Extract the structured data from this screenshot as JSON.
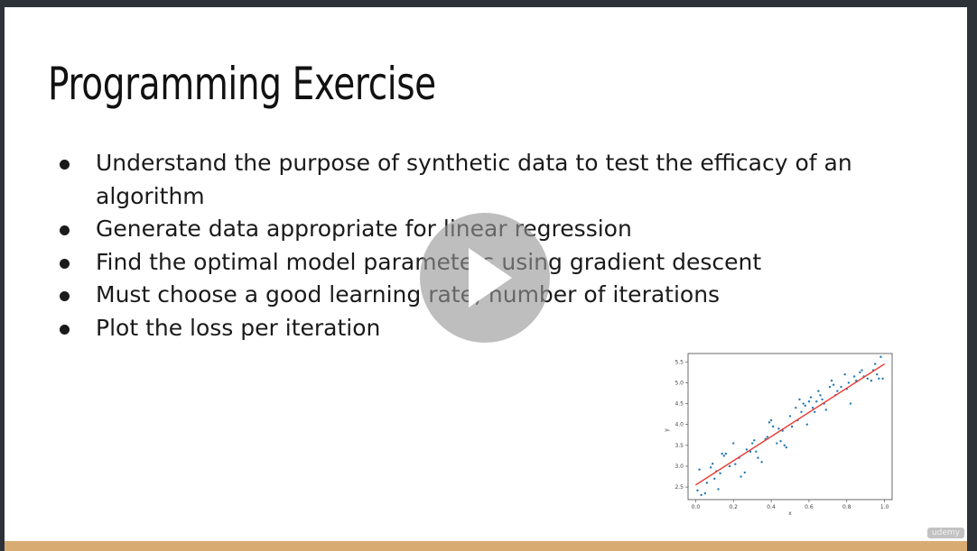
{
  "slide": {
    "title": "Programming Exercise",
    "bullets": [
      "Understand the purpose of synthetic data to test the efficacy of an algorithm",
      "Generate data appropriate for linear regression",
      "Find the optimal model parameters using gradient descent",
      "Must choose a good learning rate, number of iterations",
      "Plot the loss per iteration"
    ],
    "watermark": "udemy"
  },
  "player": {
    "play_icon": "play-icon"
  },
  "colors": {
    "bottom_bar": "#d8ab73",
    "points": "#1f77b4",
    "line": "#e8352b"
  },
  "chart_data": {
    "type": "scatter",
    "xlabel": "x",
    "ylabel": "y",
    "xlim": [
      -0.04,
      1.04
    ],
    "ylim": [
      2.2,
      5.7
    ],
    "xticks": [
      "0.0",
      "0.2",
      "0.4",
      "0.6",
      "0.8",
      "1.0"
    ],
    "yticks": [
      "2.5",
      "3.0",
      "3.5",
      "4.0",
      "4.5",
      "5.0",
      "5.5"
    ],
    "grid": false,
    "fit_line": {
      "x": [
        0.0,
        1.0
      ],
      "y": [
        2.55,
        5.45
      ]
    },
    "points": [
      [
        0.01,
        2.42
      ],
      [
        0.02,
        2.92
      ],
      [
        0.03,
        2.31
      ],
      [
        0.05,
        2.35
      ],
      [
        0.06,
        2.6
      ],
      [
        0.08,
        2.97
      ],
      [
        0.09,
        3.06
      ],
      [
        0.1,
        2.7
      ],
      [
        0.11,
        2.88
      ],
      [
        0.12,
        2.45
      ],
      [
        0.13,
        2.83
      ],
      [
        0.14,
        3.3
      ],
      [
        0.15,
        3.25
      ],
      [
        0.16,
        3.3
      ],
      [
        0.18,
        3.0
      ],
      [
        0.2,
        3.55
      ],
      [
        0.21,
        3.05
      ],
      [
        0.23,
        3.2
      ],
      [
        0.24,
        2.75
      ],
      [
        0.26,
        2.85
      ],
      [
        0.27,
        3.4
      ],
      [
        0.29,
        3.35
      ],
      [
        0.3,
        3.55
      ],
      [
        0.31,
        3.62
      ],
      [
        0.32,
        3.35
      ],
      [
        0.33,
        3.2
      ],
      [
        0.35,
        3.1
      ],
      [
        0.37,
        3.65
      ],
      [
        0.38,
        3.7
      ],
      [
        0.39,
        4.05
      ],
      [
        0.4,
        4.1
      ],
      [
        0.41,
        3.95
      ],
      [
        0.43,
        3.55
      ],
      [
        0.44,
        3.9
      ],
      [
        0.45,
        3.6
      ],
      [
        0.46,
        3.85
      ],
      [
        0.47,
        3.5
      ],
      [
        0.48,
        3.45
      ],
      [
        0.5,
        4.2
      ],
      [
        0.51,
        3.95
      ],
      [
        0.53,
        4.4
      ],
      [
        0.54,
        4.1
      ],
      [
        0.55,
        4.6
      ],
      [
        0.56,
        4.3
      ],
      [
        0.57,
        4.5
      ],
      [
        0.58,
        4.45
      ],
      [
        0.59,
        4.0
      ],
      [
        0.6,
        4.55
      ],
      [
        0.61,
        4.65
      ],
      [
        0.62,
        4.4
      ],
      [
        0.63,
        4.3
      ],
      [
        0.64,
        4.55
      ],
      [
        0.65,
        4.8
      ],
      [
        0.66,
        4.7
      ],
      [
        0.67,
        4.6
      ],
      [
        0.68,
        4.5
      ],
      [
        0.69,
        4.35
      ],
      [
        0.71,
        4.9
      ],
      [
        0.72,
        5.05
      ],
      [
        0.73,
        4.95
      ],
      [
        0.74,
        4.7
      ],
      [
        0.75,
        4.8
      ],
      [
        0.77,
        4.9
      ],
      [
        0.79,
        5.2
      ],
      [
        0.8,
        4.85
      ],
      [
        0.81,
        5.0
      ],
      [
        0.82,
        4.5
      ],
      [
        0.84,
        5.15
      ],
      [
        0.85,
        5.05
      ],
      [
        0.87,
        5.25
      ],
      [
        0.88,
        5.3
      ],
      [
        0.89,
        5.15
      ],
      [
        0.91,
        5.1
      ],
      [
        0.93,
        5.05
      ],
      [
        0.94,
        5.3
      ],
      [
        0.95,
        5.45
      ],
      [
        0.96,
        5.2
      ],
      [
        0.97,
        5.1
      ],
      [
        0.98,
        5.62
      ],
      [
        0.99,
        5.1
      ]
    ]
  }
}
